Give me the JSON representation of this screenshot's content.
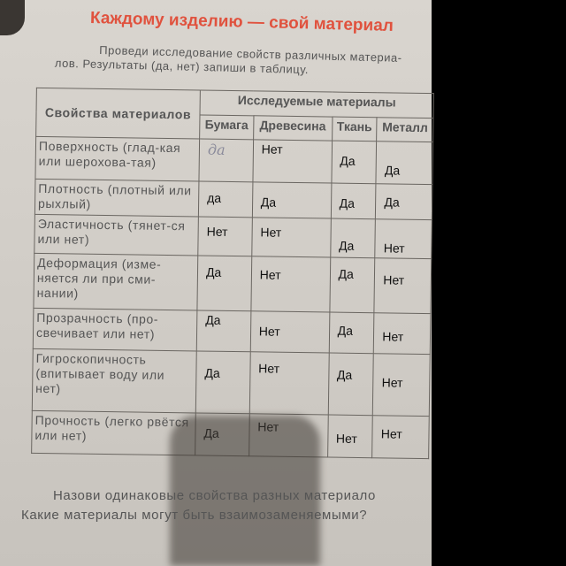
{
  "title": "Каждому изделию — свой материал",
  "intro": {
    "line1": "Проведи исследование свойств различных материа-",
    "line2": "лов. Результаты (да, нет) запиши в таблицу."
  },
  "table": {
    "header_property": "Свойства материалов",
    "header_materials": "Исследуемые материалы",
    "materials": [
      "Бумага",
      "Древесина",
      "Ткань",
      "Металл"
    ],
    "rows": [
      {
        "property": "Поверхность (глад-кая или шерохова-тая)",
        "answers": [
          "да",
          "Нет",
          "Да",
          "Да"
        ]
      },
      {
        "property": "Плотность (плотный или рыхлый)",
        "answers": [
          "да",
          "Да",
          "Да",
          "Да"
        ]
      },
      {
        "property": "Эластичность (тянет-ся или нет)",
        "answers": [
          "Нет",
          "Нет",
          "Да",
          "Нет"
        ]
      },
      {
        "property": "Деформация (изме-няется ли при сми-нании)",
        "answers": [
          "Да",
          "Нет",
          "Да",
          "Нет"
        ]
      },
      {
        "property": "Прозрачность (про-свечивает или нет)",
        "answers": [
          "Да",
          "Нет",
          "Да",
          "Нет"
        ]
      },
      {
        "property": "Гигроскопичность (впитывает воду или нет)",
        "answers": [
          "Да",
          "Нет",
          "Да",
          "Нет"
        ]
      },
      {
        "property": "Прочность (легко рвётся или нет)",
        "answers": [
          "Да",
          "Нет",
          "Нет",
          "Нет"
        ]
      }
    ]
  },
  "question": {
    "line1": "Назови одинаковые свойства разных материало",
    "line2": "Какие материалы могут быть взаимозаменяемыми?"
  }
}
